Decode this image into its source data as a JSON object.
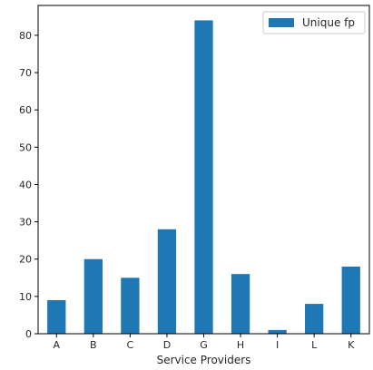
{
  "chart_data": {
    "type": "bar",
    "categories": [
      "A",
      "B",
      "C",
      "D",
      "G",
      "H",
      "I",
      "L",
      "K"
    ],
    "series": [
      {
        "name": "Unique fp",
        "values": [
          9,
          20,
          15,
          28,
          84,
          16,
          1,
          8,
          18
        ],
        "color": "#1f77b4"
      }
    ],
    "xlabel": "Service Providers",
    "ylabel": "",
    "ylim": [
      0,
      88
    ],
    "yticks": [
      0,
      10,
      20,
      30,
      40,
      50,
      60,
      70,
      80
    ],
    "grid": false,
    "legend_position": "top-right"
  }
}
